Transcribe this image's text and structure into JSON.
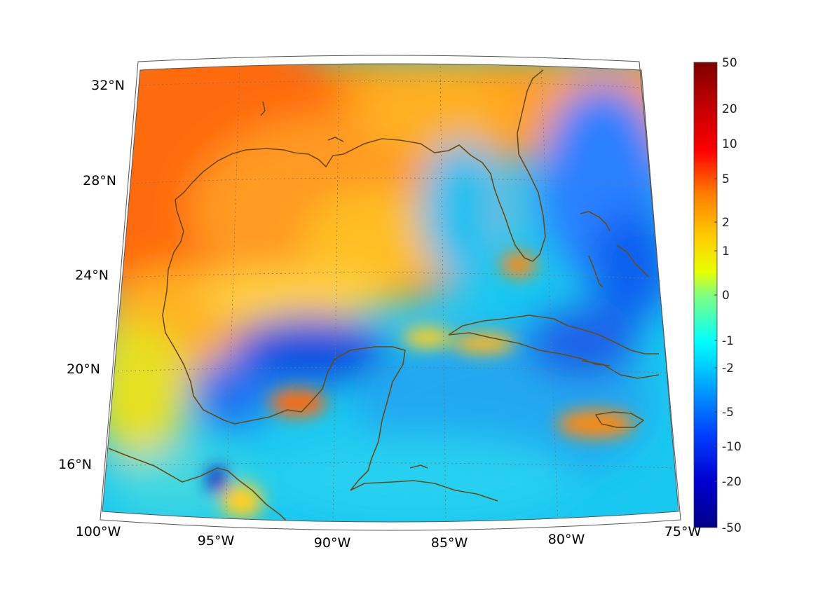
{
  "map": {
    "lon_labels": [
      "100°W",
      "95°W",
      "90°W",
      "85°W",
      "80°W",
      "75°W"
    ],
    "lat_labels": [
      "32°N",
      "28°N",
      "24°N",
      "20°N",
      "16°N"
    ],
    "region": "Gulf of Mexico and Caribbean",
    "extent": {
      "lon": [
        -100,
        -75
      ],
      "lat": [
        14,
        33
      ]
    }
  },
  "colorbar": {
    "tick_labels": [
      "50",
      "20",
      "10",
      "5",
      "2",
      "1",
      "0",
      "-1",
      "-2",
      "-5",
      "-10",
      "-20",
      "-50"
    ],
    "range": [
      -50,
      50
    ],
    "colormap": "jet",
    "colors": [
      "#7f0000",
      "#ff0000",
      "#ff8000",
      "#ffff00",
      "#80ff80",
      "#00ffff",
      "#0080ff",
      "#0000ff",
      "#00008f"
    ]
  }
}
